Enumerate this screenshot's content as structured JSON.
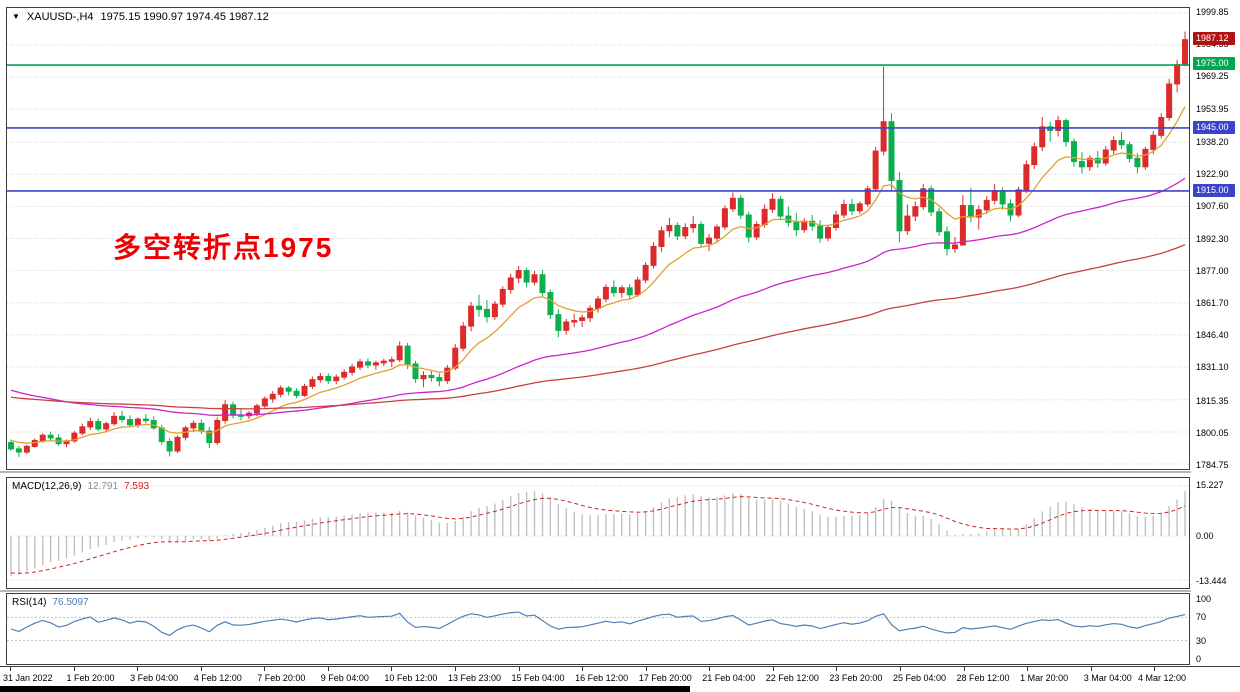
{
  "window": {
    "dropdown_glyph": "▼",
    "title_symbol": "XAUUSD-,H4",
    "title_ohlc": "1975.15 1990.97 1974.45 1987.12"
  },
  "annotation": {
    "text": "多空转折点1975",
    "color": "#ee0000"
  },
  "colors": {
    "bull": "#dd2a2a",
    "bear": "#0caf4e",
    "ma_fast": "#e0a030",
    "ma_mid": "#cc22cc",
    "ma_slow": "#c94040",
    "grid": "#cfcfcf",
    "level_green": "#00a651",
    "level_blue": "#3b44c8",
    "macd_hist": "#c0c0c0",
    "macd_signal": "#cc2222",
    "rsi_line": "#4a7fb5",
    "rsi_level": "#b9c6b9",
    "current_label_bg": "#b01212",
    "axis_text": "#000000"
  },
  "main_chart": {
    "price_max": 2002.2,
    "price_min": 1782.4,
    "axis_ticks": [
      "1999.85",
      "1984.55",
      "1969.25",
      "1953.95",
      "1938.20",
      "1922.90",
      "1907.60",
      "1892.30",
      "1877.00",
      "1861.70",
      "1846.40",
      "1831.10",
      "1815.35",
      "1800.05",
      "1784.75"
    ],
    "levels": [
      {
        "price": 1975.0,
        "label": "1975.00",
        "type": "green"
      },
      {
        "price": 1945.0,
        "label": "1945.00",
        "type": "blue"
      },
      {
        "price": 1915.0,
        "label": "1915.00",
        "type": "blue"
      }
    ],
    "current_price": {
      "price": 1987.12,
      "label": "1987.12"
    }
  },
  "chart_data": {
    "type": "candlestick",
    "symbol": "XAUUSD-",
    "timeframe": "H4",
    "title": "XAUUSD-,H4",
    "ohlc_display": {
      "open": "1975.15",
      "high": "1990.97",
      "low": "1974.45",
      "close": "1987.12"
    },
    "label_every_n_bars": 8,
    "time_labels": [
      "31 Jan 2022",
      "1 Feb 20:00",
      "3 Feb 04:00",
      "4 Feb 12:00",
      "7 Feb 20:00",
      "9 Feb 04:00",
      "10 Feb 12:00",
      "13 Feb 23:00",
      "15 Feb 04:00",
      "16 Feb 12:00",
      "17 Feb 20:00",
      "21 Feb 04:00",
      "22 Feb 12:00",
      "23 Feb 20:00",
      "25 Feb 04:00",
      "28 Feb 12:00",
      "1 Mar 20:00",
      "3 Mar 04:00",
      "4 Mar 12:00"
    ],
    "candles": [
      [
        1795.0,
        1796.5,
        1791.0,
        1792.0
      ],
      [
        1792.0,
        1793.5,
        1788.2,
        1790.5
      ],
      [
        1790.5,
        1794.0,
        1789.5,
        1793.2
      ],
      [
        1793.2,
        1797.0,
        1792.5,
        1796.0
      ],
      [
        1796.0,
        1799.5,
        1795.0,
        1798.5
      ],
      [
        1798.5,
        1800.2,
        1796.0,
        1797.2
      ],
      [
        1797.2,
        1799.0,
        1793.5,
        1794.5
      ],
      [
        1794.5,
        1796.5,
        1792.8,
        1795.8
      ],
      [
        1795.8,
        1800.5,
        1795.0,
        1799.5
      ],
      [
        1799.5,
        1804.0,
        1798.5,
        1802.5
      ],
      [
        1802.5,
        1806.8,
        1801.0,
        1805.0
      ],
      [
        1805.0,
        1806.5,
        1800.5,
        1801.5
      ],
      [
        1801.5,
        1805.0,
        1799.8,
        1804.0
      ],
      [
        1804.0,
        1809.5,
        1803.0,
        1807.5
      ],
      [
        1807.5,
        1810.0,
        1804.5,
        1806.0
      ],
      [
        1806.0,
        1808.0,
        1802.5,
        1803.5
      ],
      [
        1803.5,
        1807.0,
        1802.0,
        1806.2
      ],
      [
        1806.2,
        1808.5,
        1804.0,
        1805.5
      ],
      [
        1805.5,
        1807.5,
        1801.0,
        1802.0
      ],
      [
        1802.0,
        1803.5,
        1794.0,
        1795.5
      ],
      [
        1795.5,
        1797.0,
        1788.4,
        1791.0
      ],
      [
        1791.0,
        1798.5,
        1790.0,
        1797.5
      ],
      [
        1797.5,
        1803.0,
        1796.0,
        1802.0
      ],
      [
        1802.0,
        1805.5,
        1800.0,
        1804.2
      ],
      [
        1804.2,
        1806.0,
        1799.0,
        1800.5
      ],
      [
        1800.5,
        1802.5,
        1792.3,
        1795.0
      ],
      [
        1795.0,
        1807.0,
        1794.0,
        1805.5
      ],
      [
        1805.5,
        1815.2,
        1804.0,
        1813.0
      ],
      [
        1813.0,
        1814.5,
        1806.5,
        1808.0
      ],
      [
        1808.0,
        1811.0,
        1805.5,
        1807.8
      ],
      [
        1807.8,
        1810.0,
        1806.2,
        1809.0
      ],
      [
        1809.0,
        1813.5,
        1807.5,
        1812.5
      ],
      [
        1812.5,
        1817.0,
        1811.0,
        1815.8
      ],
      [
        1815.8,
        1819.5,
        1814.0,
        1818.0
      ],
      [
        1818.0,
        1822.3,
        1816.5,
        1821.0
      ],
      [
        1821.0,
        1822.0,
        1817.5,
        1819.5
      ],
      [
        1819.5,
        1821.0,
        1816.2,
        1817.5
      ],
      [
        1817.5,
        1823.0,
        1816.8,
        1821.8
      ],
      [
        1821.8,
        1826.5,
        1820.5,
        1825.0
      ],
      [
        1825.0,
        1828.2,
        1823.5,
        1826.5
      ],
      [
        1826.5,
        1828.0,
        1823.0,
        1824.5
      ],
      [
        1824.5,
        1827.5,
        1822.8,
        1826.2
      ],
      [
        1826.2,
        1830.0,
        1825.0,
        1828.5
      ],
      [
        1828.5,
        1832.5,
        1827.0,
        1831.0
      ],
      [
        1831.0,
        1834.8,
        1829.5,
        1833.5
      ],
      [
        1833.5,
        1835.2,
        1830.5,
        1832.0
      ],
      [
        1832.0,
        1834.0,
        1829.8,
        1833.0
      ],
      [
        1833.0,
        1835.0,
        1831.5,
        1833.8
      ],
      [
        1833.8,
        1836.0,
        1831.0,
        1834.5
      ],
      [
        1834.5,
        1843.2,
        1833.5,
        1841.0
      ],
      [
        1841.0,
        1842.5,
        1830.0,
        1832.5
      ],
      [
        1832.5,
        1834.0,
        1823.5,
        1825.5
      ],
      [
        1825.5,
        1829.0,
        1821.4,
        1827.0
      ],
      [
        1827.0,
        1829.5,
        1824.0,
        1826.0
      ],
      [
        1826.0,
        1828.0,
        1821.8,
        1824.5
      ],
      [
        1824.5,
        1832.0,
        1823.0,
        1830.5
      ],
      [
        1830.5,
        1842.0,
        1829.5,
        1840.0
      ],
      [
        1840.0,
        1852.5,
        1838.5,
        1850.5
      ],
      [
        1850.5,
        1862.0,
        1848.0,
        1860.0
      ],
      [
        1860.0,
        1865.5,
        1855.0,
        1858.5
      ],
      [
        1858.5,
        1863.0,
        1852.3,
        1855.0
      ],
      [
        1855.0,
        1862.5,
        1853.5,
        1861.0
      ],
      [
        1861.0,
        1869.5,
        1859.5,
        1868.0
      ],
      [
        1868.0,
        1875.5,
        1866.0,
        1873.5
      ],
      [
        1873.5,
        1879.3,
        1871.0,
        1877.0
      ],
      [
        1877.0,
        1878.5,
        1869.0,
        1871.5
      ],
      [
        1871.5,
        1876.8,
        1870.0,
        1875.0
      ],
      [
        1875.0,
        1877.2,
        1865.0,
        1866.5
      ],
      [
        1866.5,
        1868.0,
        1854.0,
        1856.0
      ],
      [
        1856.0,
        1858.5,
        1845.2,
        1848.5
      ],
      [
        1848.5,
        1854.0,
        1846.5,
        1852.5
      ],
      [
        1852.5,
        1856.5,
        1850.0,
        1853.2
      ],
      [
        1853.2,
        1856.0,
        1850.1,
        1854.5
      ],
      [
        1854.5,
        1860.5,
        1852.5,
        1859.0
      ],
      [
        1859.0,
        1865.0,
        1857.0,
        1863.5
      ],
      [
        1863.5,
        1870.5,
        1862.0,
        1869.0
      ],
      [
        1869.0,
        1872.3,
        1864.5,
        1866.5
      ],
      [
        1866.5,
        1870.0,
        1864.0,
        1868.8
      ],
      [
        1868.8,
        1870.5,
        1863.4,
        1865.5
      ],
      [
        1865.5,
        1874.0,
        1864.5,
        1872.5
      ],
      [
        1872.5,
        1881.0,
        1871.0,
        1879.5
      ],
      [
        1879.5,
        1890.5,
        1878.0,
        1888.5
      ],
      [
        1888.5,
        1898.0,
        1886.0,
        1896.0
      ],
      [
        1896.0,
        1902.2,
        1893.0,
        1898.5
      ],
      [
        1898.5,
        1900.0,
        1891.5,
        1893.5
      ],
      [
        1893.5,
        1899.5,
        1892.0,
        1897.5
      ],
      [
        1897.5,
        1903.0,
        1895.0,
        1899.0
      ],
      [
        1899.0,
        1900.5,
        1888.0,
        1890.0
      ],
      [
        1890.0,
        1894.5,
        1886.3,
        1892.5
      ],
      [
        1892.5,
        1899.0,
        1890.5,
        1897.8
      ],
      [
        1897.8,
        1908.0,
        1896.5,
        1906.5
      ],
      [
        1906.5,
        1914.3,
        1905.0,
        1911.5
      ],
      [
        1911.5,
        1913.0,
        1901.5,
        1903.5
      ],
      [
        1903.5,
        1905.0,
        1890.4,
        1893.0
      ],
      [
        1893.0,
        1900.5,
        1891.5,
        1899.0
      ],
      [
        1899.0,
        1908.5,
        1897.5,
        1906.2
      ],
      [
        1906.2,
        1913.8,
        1904.5,
        1911.0
      ],
      [
        1911.0,
        1912.5,
        1901.0,
        1903.0
      ],
      [
        1903.0,
        1907.5,
        1898.0,
        1900.0
      ],
      [
        1900.0,
        1904.5,
        1893.4,
        1896.5
      ],
      [
        1896.5,
        1902.0,
        1895.0,
        1900.5
      ],
      [
        1900.5,
        1903.5,
        1896.0,
        1898.2
      ],
      [
        1898.2,
        1901.0,
        1890.2,
        1892.5
      ],
      [
        1892.5,
        1899.0,
        1891.0,
        1897.5
      ],
      [
        1897.5,
        1905.5,
        1896.0,
        1903.5
      ],
      [
        1903.5,
        1910.8,
        1902.0,
        1908.5
      ],
      [
        1908.5,
        1911.2,
        1903.5,
        1905.5
      ],
      [
        1905.5,
        1910.0,
        1904.0,
        1908.8
      ],
      [
        1908.8,
        1917.5,
        1907.5,
        1916.0
      ],
      [
        1916.0,
        1936.0,
        1914.5,
        1934.0
      ],
      [
        1934.0,
        1974.3,
        1932.0,
        1948.0
      ],
      [
        1948.0,
        1952.0,
        1915.0,
        1920.0
      ],
      [
        1920.0,
        1924.0,
        1890.5,
        1896.0
      ],
      [
        1896.0,
        1908.5,
        1894.0,
        1903.0
      ],
      [
        1903.0,
        1910.0,
        1900.5,
        1907.5
      ],
      [
        1907.5,
        1918.2,
        1906.0,
        1916.0
      ],
      [
        1916.0,
        1917.5,
        1903.0,
        1905.0
      ],
      [
        1905.0,
        1907.0,
        1893.5,
        1895.5
      ],
      [
        1895.5,
        1898.0,
        1884.2,
        1887.5
      ],
      [
        1887.5,
        1893.0,
        1885.5,
        1889.2
      ],
      [
        1889.2,
        1913.0,
        1889.0,
        1908.0
      ],
      [
        1908.0,
        1916.5,
        1900.0,
        1902.5
      ],
      [
        1902.5,
        1908.0,
        1896.5,
        1906.0
      ],
      [
        1906.0,
        1912.5,
        1904.0,
        1910.5
      ],
      [
        1910.5,
        1918.3,
        1908.5,
        1915.0
      ],
      [
        1915.0,
        1916.5,
        1906.0,
        1908.8
      ],
      [
        1908.8,
        1911.0,
        1900.4,
        1903.5
      ],
      [
        1903.5,
        1917.0,
        1902.5,
        1915.5
      ],
      [
        1915.5,
        1929.5,
        1914.0,
        1927.5
      ],
      [
        1927.5,
        1938.0,
        1925.5,
        1936.0
      ],
      [
        1936.0,
        1950.2,
        1934.0,
        1945.5
      ],
      [
        1945.5,
        1948.0,
        1938.5,
        1943.8
      ],
      [
        1943.8,
        1950.8,
        1941.0,
        1948.5
      ],
      [
        1948.5,
        1949.5,
        1936.0,
        1938.5
      ],
      [
        1938.5,
        1940.0,
        1926.5,
        1929.0
      ],
      [
        1929.0,
        1933.5,
        1923.3,
        1926.5
      ],
      [
        1926.5,
        1932.0,
        1924.5,
        1930.5
      ],
      [
        1930.5,
        1934.0,
        1926.0,
        1928.3
      ],
      [
        1928.3,
        1936.5,
        1927.0,
        1934.5
      ],
      [
        1934.5,
        1941.0,
        1932.5,
        1939.0
      ],
      [
        1939.0,
        1943.2,
        1935.0,
        1937.0
      ],
      [
        1937.0,
        1938.5,
        1928.5,
        1930.5
      ],
      [
        1930.5,
        1933.0,
        1923.4,
        1926.5
      ],
      [
        1926.5,
        1936.0,
        1925.0,
        1934.8
      ],
      [
        1934.8,
        1943.5,
        1932.5,
        1941.5
      ],
      [
        1941.5,
        1952.0,
        1940.0,
        1950.0
      ],
      [
        1950.0,
        1968.5,
        1948.5,
        1966.0
      ],
      [
        1966.0,
        1977.5,
        1962.0,
        1975.2
      ],
      [
        1975.15,
        1990.97,
        1974.45,
        1987.12
      ]
    ],
    "moving_averages": [
      {
        "name": "fast",
        "period": 10,
        "seed": 1797,
        "color_key": "ma_fast"
      },
      {
        "name": "mid",
        "period": 55,
        "seed": 1821,
        "color_key": "ma_mid"
      },
      {
        "name": "slow",
        "period": 130,
        "seed": 1817,
        "color_key": "ma_slow"
      }
    ],
    "macd": {
      "label": "MACD(12,26,9)",
      "value_main": "12.791",
      "value_signal": "7.593",
      "fast": 12,
      "slow": 26,
      "signal": 9,
      "seed_fast": 1795,
      "seed_slow": 1808,
      "seed_signal": -11,
      "scale_max": 15.227,
      "scale_min": -13.444,
      "axis_ticks": [
        "15.227",
        "0.00",
        "-13.444"
      ]
    },
    "rsi": {
      "label": "RSI(14)",
      "value": "76.5097",
      "period": 14,
      "levels": [
        70,
        30
      ],
      "axis_ticks": [
        "100",
        "70",
        "30",
        "0"
      ]
    }
  }
}
